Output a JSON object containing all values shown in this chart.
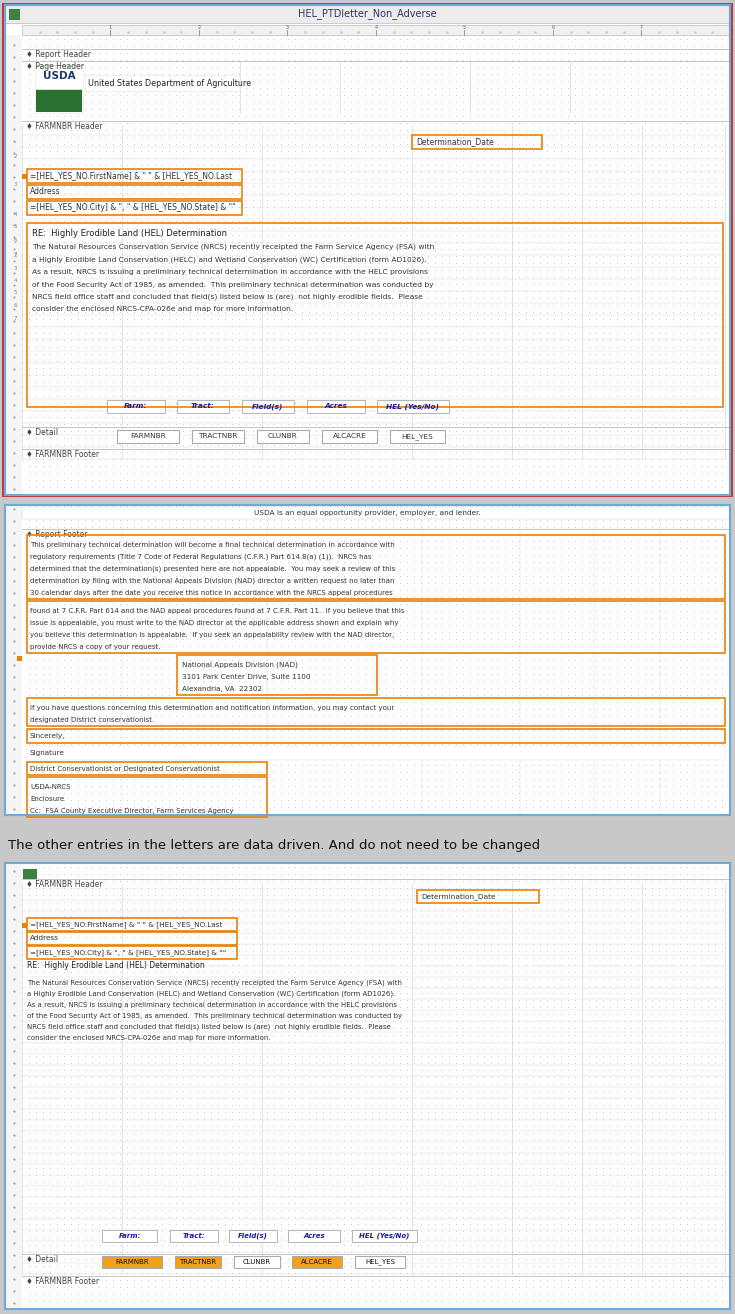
{
  "title": "HEL_PTDletter_Non_Adverse",
  "panel1": {
    "usda_text": "United States Department of Agriculture",
    "det_date_label": "Determination_Date",
    "name_field": "=[HEL_YES_NO.FirstName] & \" \" & [HEL_YES_NO.Last",
    "address_field": "Address",
    "city_field": "=[HEL_YES_NO.City] & \", \" & [HEL_YES_NO.State] & \"\"",
    "re_line": "RE:  Highly Erodible Land (HEL) Determination",
    "body_text": "The Natural Resources Conservation Service (NRCS) recently receipted the Farm Service Agency (FSA) with\na Highly Erodible Land Conservation (HELC) and Wetland Conservation (WC) Certification (form AD1026).\nAs a result, NRCS is issuing a preliminary technical determination in accordance with the HELC provisions\nof the Food Security Act of 1985, as amended.  This preliminary technical determination was conducted by\nNRCS field office staff and concluded that field(s) listed below is (are)  not highly erodible fields.  Please\nconsider the enclosed NRCS-CPA-026e and map for more information.",
    "table_headers": [
      "Farm:",
      "Tract:",
      "Field(s)",
      "Acres",
      "HEL (Yes/No)"
    ],
    "detail_fields": [
      "FARMNBR",
      "TRACTNBR",
      "CLUNBR",
      "ALCACRE",
      "HEL_YES"
    ]
  },
  "panel2": {
    "usda_equal": "USDA is an equal opportunity provider, employer, and lender.",
    "footer_text1": "This preliminary technical determination will become a final technical determination in accordance with\nregulatory requirements (Title 7 Code of Federal Regulations (C.F.R.) Part 614.8(a) (1)).  NRCS has\ndetermined that the determination(s) presented here are not appealable.  You may seek a review of this\ndetermination by filing with the National Appeals Division (NAD) director a written request no later than\n30 calendar days after the date you receive this notice in accordance with the NRCS appeal procedures",
    "footer_text2": "found at 7 C.F.R. Part 614 and the NAD appeal procedures found at 7 C.F.R. Part 11.  If you believe that this\nissue is appealable, you must write to the NAD director at the applicable address shown and explain why\nyou believe this determination is appealable.  If you seek an appealability review with the NAD director,\nprovide NRCS a copy of your request.",
    "nad_address": "National Appeals Division (NAD)\n3101 Park Center Drive, Suite 1100\nAlexandria, VA  22302",
    "questions_text": "If you have questions concerning this determination and notification information, you may contact your\ndesignated District conservationist.",
    "sincerely": "Sincerely,",
    "signature": "Signature",
    "district": "District Conservationist or Designated Conservationist",
    "usda_nrcs": "USDA-NRCS",
    "enclosure": "Enclosure",
    "cc_line": "Cc:  FSA County Executive Director, Farm Services Agency"
  },
  "separator_text": "The other entries in the letters are data driven. And do not need to be changed",
  "panel3": {
    "det_date_label": "Determination_Date",
    "name_field": "=[HEL_YES_NO.FirstName] & \" \" & [HEL_YES_NO.Last",
    "address_field": "Address",
    "city_field": "=[HEL_YES_NO.City] & \", \" & [HEL_YES_NO.State] & \"\"",
    "re_line": "RE:  Highly Erodible Land (HEL) Determination",
    "body_text": "The Natural Resources Conservation Service (NRCS) recently receipted the Farm Service Agency (FSA) with\na Highly Erodible Land Conservation (HELC) and Wetland Conservation (WC) Certification (form AD1026).\nAs a result, NRCS is issuing a preliminary technical determination in accordance with the HELC provisions\nof the Food Security Act of 1985, as amended.  This preliminary technical determination was conducted by\nNRCS field office staff and concluded that field(s) listed below is (are)  not highly erodible fields.  Please\nconsider the enclosed NRCS-CPA-026e and map for more information.",
    "table_headers": [
      "Farm:",
      "Tract:",
      "Field(s)",
      "Acres",
      "HEL (Yes/No)"
    ],
    "detail_fields": [
      "FARMNBR",
      "TRACTNBR",
      "CLUNBR",
      "ALCACRE",
      "HEL_YES"
    ]
  },
  "colors": {
    "panel_border": "#6aabdb",
    "outer_border": "#cc3333",
    "title_bar_bg": "#e8e8e8",
    "green_icon": "#3e8040",
    "ruler_bg": "#f0f0f0",
    "ruler_tick": "#999999",
    "grid_line": "#d8d8d8",
    "dot_grid": "#d0d0d0",
    "section_label": "#444444",
    "orange_border": "#e8820a",
    "orange_fill": "#f5a01a",
    "text_dark": "#222222",
    "text_blue": "#1a1aaa",
    "text_body": "#333333",
    "left_margin_bg": "#f8f8f8",
    "white": "#ffffff",
    "outer_bg": "#c8c8c8"
  }
}
